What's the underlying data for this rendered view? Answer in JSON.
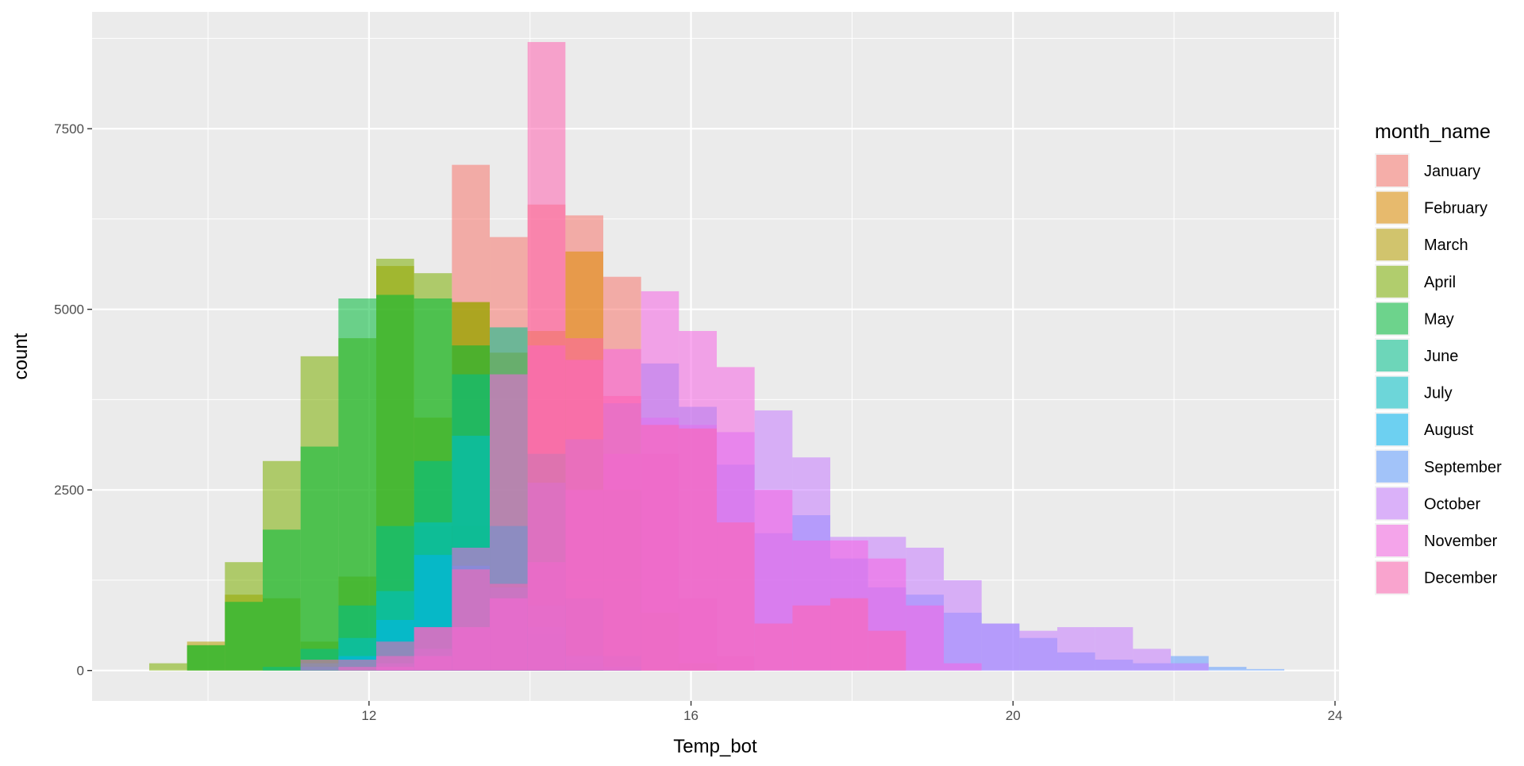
{
  "chart_data": {
    "type": "histogram",
    "x_label": "Temp_bot",
    "y_label": "count",
    "legend_title": "month_name",
    "legend_position": "right",
    "grid": true,
    "alpha": 0.55,
    "bins": [
      9.27,
      9.74,
      10.21,
      10.68,
      11.15,
      11.62,
      12.09,
      12.56,
      13.03,
      13.5,
      13.97,
      14.44,
      14.91,
      15.38,
      15.85,
      16.32,
      16.79,
      17.26,
      17.73,
      18.2,
      18.67,
      19.14,
      19.61,
      20.08,
      20.55,
      21.02,
      21.49,
      21.96,
      22.43,
      22.9,
      23.37
    ],
    "xlim": [
      8.56,
      24.05
    ],
    "ylim": [
      -421,
      9117
    ],
    "xticks": [
      12,
      16,
      20,
      24
    ],
    "yticks": [
      0,
      2500,
      5000,
      7500
    ],
    "series": [
      {
        "name": "January",
        "color": "#F8766D",
        "values": [
          0,
          0,
          0,
          0,
          0,
          0,
          100,
          1000,
          7000,
          6000,
          6450,
          6300,
          5450,
          3000,
          1000,
          200,
          0,
          0,
          0,
          0,
          0,
          0,
          0,
          0,
          0,
          0,
          0,
          0,
          0,
          0
        ]
      },
      {
        "name": "February",
        "color": "#DE8C00",
        "values": [
          0,
          0,
          0,
          0,
          0,
          0,
          300,
          2000,
          5100,
          4400,
          4700,
          5800,
          2500,
          800,
          100,
          0,
          0,
          0,
          0,
          0,
          0,
          0,
          0,
          0,
          0,
          0,
          0,
          0,
          0,
          0
        ]
      },
      {
        "name": "March",
        "color": "#B79F00",
        "values": [
          0,
          400,
          1050,
          1000,
          400,
          1300,
          5600,
          3500,
          2000,
          500,
          100,
          0,
          0,
          0,
          0,
          0,
          0,
          0,
          0,
          0,
          0,
          0,
          0,
          0,
          0,
          0,
          0,
          0,
          0,
          0
        ]
      },
      {
        "name": "April",
        "color": "#7CAE00",
        "values": [
          100,
          350,
          1500,
          2900,
          4350,
          4600,
          5700,
          5500,
          5100,
          2000,
          500,
          100,
          0,
          0,
          0,
          0,
          0,
          0,
          0,
          0,
          0,
          0,
          0,
          0,
          0,
          0,
          0,
          0,
          0,
          0
        ]
      },
      {
        "name": "May",
        "color": "#00BA38",
        "values": [
          0,
          350,
          950,
          1950,
          3100,
          5150,
          5200,
          5150,
          4500,
          2000,
          400,
          50,
          0,
          0,
          0,
          0,
          0,
          0,
          0,
          0,
          0,
          0,
          0,
          0,
          0,
          0,
          0,
          0,
          0,
          0
        ]
      },
      {
        "name": "June",
        "color": "#00C08B",
        "values": [
          0,
          0,
          0,
          50,
          300,
          900,
          2000,
          2900,
          4100,
          4750,
          3000,
          1000,
          200,
          0,
          0,
          0,
          0,
          0,
          0,
          0,
          0,
          0,
          0,
          0,
          0,
          0,
          0,
          0,
          0,
          0
        ]
      },
      {
        "name": "July",
        "color": "#00BFC4",
        "values": [
          0,
          0,
          0,
          0,
          100,
          450,
          1100,
          2050,
          3250,
          2000,
          900,
          200,
          0,
          0,
          0,
          0,
          0,
          0,
          0,
          0,
          0,
          0,
          0,
          0,
          0,
          0,
          0,
          0,
          0,
          0
        ]
      },
      {
        "name": "August",
        "color": "#00B4F0",
        "values": [
          0,
          0,
          0,
          0,
          50,
          200,
          700,
          1600,
          1450,
          1150,
          600,
          200,
          50,
          0,
          0,
          0,
          0,
          0,
          0,
          0,
          0,
          0,
          0,
          0,
          0,
          0,
          0,
          0,
          0,
          0
        ]
      },
      {
        "name": "September",
        "color": "#619CFF",
        "values": [
          0,
          0,
          0,
          0,
          0,
          0,
          100,
          300,
          600,
          1000,
          2600,
          3200,
          3700,
          4250,
          3650,
          2850,
          1900,
          2150,
          1550,
          1150,
          1050,
          800,
          650,
          450,
          250,
          150,
          100,
          200,
          50,
          20
        ]
      },
      {
        "name": "October",
        "color": "#C77CFF",
        "values": [
          0,
          0,
          0,
          0,
          0,
          0,
          50,
          200,
          600,
          1000,
          1500,
          2500,
          3000,
          3500,
          3400,
          3300,
          3600,
          2950,
          1850,
          1850,
          1700,
          1250,
          650,
          550,
          600,
          600,
          300,
          100,
          0,
          0
        ]
      },
      {
        "name": "November",
        "color": "#F564E3",
        "values": [
          0,
          0,
          0,
          0,
          0,
          50,
          200,
          600,
          1700,
          4100,
          4500,
          4300,
          4450,
          5250,
          4700,
          4200,
          2500,
          1800,
          1800,
          1550,
          900,
          100,
          0,
          0,
          0,
          0,
          0,
          0,
          0,
          0
        ]
      },
      {
        "name": "December",
        "color": "#FF64B0",
        "values": [
          0,
          0,
          0,
          0,
          150,
          150,
          400,
          600,
          1400,
          1200,
          8700,
          4600,
          3800,
          3400,
          3350,
          2050,
          650,
          900,
          1000,
          550,
          0,
          0,
          0,
          0,
          0,
          0,
          0,
          0,
          0,
          0
        ]
      }
    ]
  }
}
